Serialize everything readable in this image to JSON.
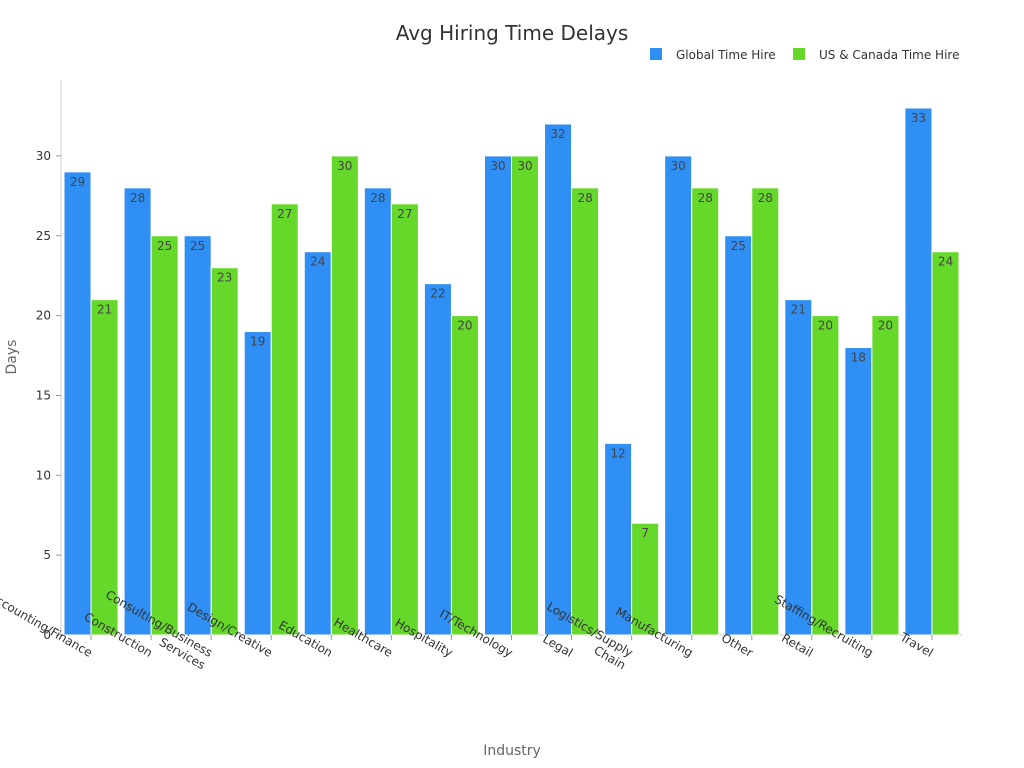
{
  "chart_data": {
    "type": "bar",
    "title": "Avg Hiring Time Delays",
    "xlabel": "Industry",
    "ylabel": "Days",
    "ylim": [
      0,
      35
    ],
    "yticks": [
      0,
      5,
      10,
      15,
      20,
      25,
      30
    ],
    "grid": false,
    "legend_position": "top-right",
    "categories": [
      [
        "Accounting/Finance"
      ],
      [
        "Construction"
      ],
      [
        "Consulting/Business",
        "Services"
      ],
      [
        "Design/Creative"
      ],
      [
        "Education"
      ],
      [
        "Healthcare"
      ],
      [
        "Hospitality"
      ],
      [
        "IT/Technology"
      ],
      [
        "Legal"
      ],
      [
        "Logistics/Supply",
        "Chain"
      ],
      [
        "Manufacturing"
      ],
      [
        "Other"
      ],
      [
        "Retail"
      ],
      [
        "Staffing/Recruiting"
      ],
      [
        "Travel"
      ]
    ],
    "series": [
      {
        "name": "Global Time Hire",
        "color": "#2f8ff5",
        "values": [
          29,
          28,
          25,
          19,
          24,
          28,
          22,
          30,
          32,
          12,
          30,
          25,
          21,
          18,
          33
        ]
      },
      {
        "name": "US & Canada Time Hire",
        "color": "#66d82a",
        "values": [
          21,
          25,
          23,
          27,
          30,
          27,
          20,
          30,
          28,
          7,
          28,
          28,
          20,
          20,
          24
        ]
      }
    ]
  }
}
